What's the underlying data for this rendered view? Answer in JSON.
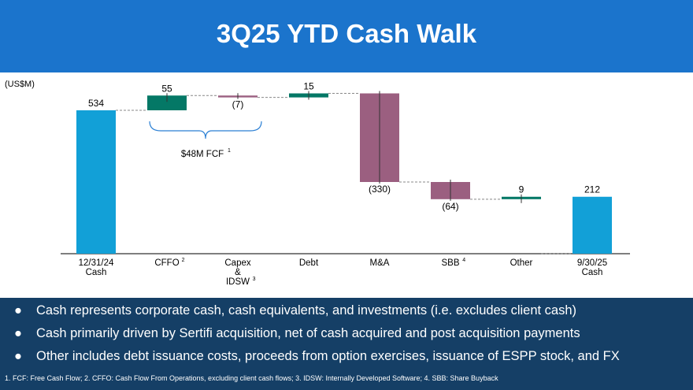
{
  "title": "3Q25 YTD Cash Walk",
  "chart_data": {
    "type": "waterfall",
    "unit_label": "(US$M)",
    "categories": [
      [
        "12/31/24",
        "Cash"
      ],
      [
        "CFFO",
        "",
        "2"
      ],
      [
        "Capex",
        "&",
        "IDSW",
        "3"
      ],
      [
        "Debt"
      ],
      [
        "M&A"
      ],
      [
        "SBB",
        "",
        "4"
      ],
      [
        "Other"
      ],
      [
        "9/30/25",
        "Cash"
      ]
    ],
    "values": [
      534,
      55,
      -7,
      15,
      -330,
      -64,
      9,
      212
    ],
    "value_labels": [
      "534",
      "55",
      "(7)",
      "15",
      "(330)",
      "(64)",
      "9",
      "212"
    ],
    "kinds": [
      "total",
      "delta",
      "delta",
      "delta",
      "delta",
      "delta",
      "delta",
      "total"
    ],
    "annotation": {
      "text": "$48M FCF",
      "superscript": "1",
      "spans": [
        "CFFO",
        "Capex & IDSW"
      ]
    },
    "colors": {
      "total": "#12a0d7",
      "increase": "#047866",
      "decrease": "#9b5f80"
    }
  },
  "bullets": [
    "Cash represents corporate cash, cash equivalents, and investments (i.e. excludes client cash)",
    "Cash primarily driven by Sertifi acquisition, net of cash acquired and post acquisition payments",
    "Other includes debt issuance costs, proceeds from option exercises, issuance of ESPP stock, and FX"
  ],
  "bullet_symbol": "●",
  "footnote": "1.  FCF: Free Cash Flow; 2. CFFO: Cash Flow From Operations, excluding client cash flows; 3. IDSW: Internally Developed Software; 4. SBB:  Share Buyback"
}
